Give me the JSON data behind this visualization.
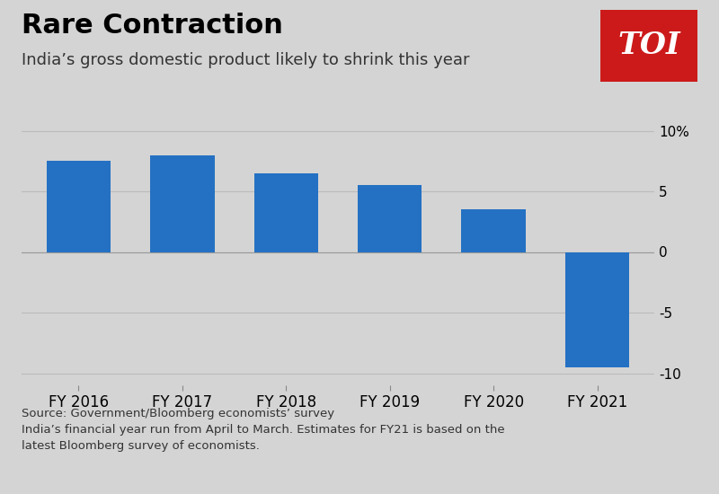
{
  "categories": [
    "FY 2016",
    "FY 2017",
    "FY 2018",
    "FY 2019",
    "FY 2020",
    "FY 2021"
  ],
  "values": [
    7.5,
    8.0,
    6.5,
    5.5,
    3.5,
    -9.5
  ],
  "bar_color": "#2471c3",
  "background_color": "#d4d4d4",
  "title": "Rare Contraction",
  "subtitle": "India’s gross domestic product likely to shrink this year",
  "title_fontsize": 22,
  "subtitle_fontsize": 13,
  "ylabel_fontsize": 11,
  "xlabel_fontsize": 12,
  "ylim": [
    -11,
    11
  ],
  "yticks": [
    -10,
    -5,
    0,
    5,
    10
  ],
  "ytick_labels": [
    "-10",
    "-5",
    "0",
    "5",
    "10%"
  ],
  "footnote_line1": "Source: Government/Bloomberg economists’ survey",
  "footnote_line2": "India’s financial year run from April to March. Estimates for FY21 is based on the",
  "footnote_line3": "latest Bloomberg survey of economists.",
  "toi_logo_color": "#cc1a1a",
  "toi_text": "TOI",
  "grid_color": "#bbbbbb"
}
